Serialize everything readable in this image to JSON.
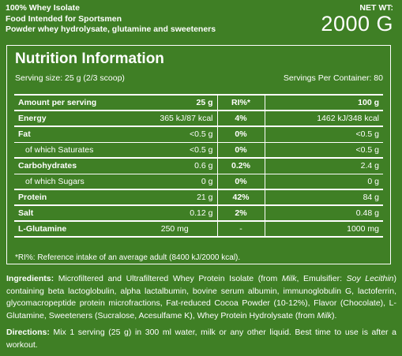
{
  "header": {
    "lines": [
      "100% Whey Isolate",
      "Food Intended for Sportsmen",
      "Powder whey hydrolysate, glutamine and sweeteners"
    ],
    "net_wt_label": "NET WT:",
    "net_wt_value": "2000 G"
  },
  "panel": {
    "title": "Nutrition Information",
    "serving_size": "Serving size: 25 g (2/3 scoop)",
    "servings_per_container": "Servings Per Container: 80"
  },
  "table": {
    "headers": [
      "Amount per serving",
      "25 g",
      "RI%*",
      "100 g"
    ],
    "rows": [
      [
        "Energy",
        "365 kJ/87 kcal",
        "4%",
        "1462 kJ/348 kcal"
      ],
      [
        "Fat",
        "<0.5 g",
        "0%",
        "<0.5 g"
      ],
      [
        "of which Saturates",
        "<0.5 g",
        "0%",
        "<0.5 g"
      ],
      [
        "Carbohydrates",
        "0.6 g",
        "0.2%",
        "2.4 g"
      ],
      [
        "of which Sugars",
        "0 g",
        "0%",
        "0 g"
      ],
      [
        "Protein",
        "21 g",
        "42%",
        "84 g"
      ],
      [
        "Salt",
        "0.12 g",
        "2%",
        "0.48 g"
      ],
      [
        "L-Glutamine",
        "250 mg",
        "-",
        "1000 mg"
      ]
    ],
    "footnote": "*RI%: Reference intake of an average adult (8400 kJ/2000 kcal)."
  },
  "ingredients": {
    "label": "Ingredients:",
    "p1": " Microfiltered and Ultrafiltered Whey Protein Isolate (from ",
    "milk1": "Milk",
    "p2": ", Emulsifier: ",
    "lecithin": "Soy Lecithin",
    "p3": ") containing beta lactoglobulin, alpha lactalbumin, bovine serum albumin, immunoglobulin G, lactoferrin, glycomacropeptide protein microfractions, Fat-reduced Cocoa Powder (10-12%), Flavor (Chocolate), L-Glutamine, Sweeteners (Sucralose, Acesulfame K), Whey Protein Hydrolysate (from ",
    "milk2": "Milk",
    "p4": ")."
  },
  "directions": {
    "label": "Directions:",
    "text": " Mix 1 serving (25 g) in 300 ml water, milk or any other liquid. Best time to use is after a workout."
  }
}
